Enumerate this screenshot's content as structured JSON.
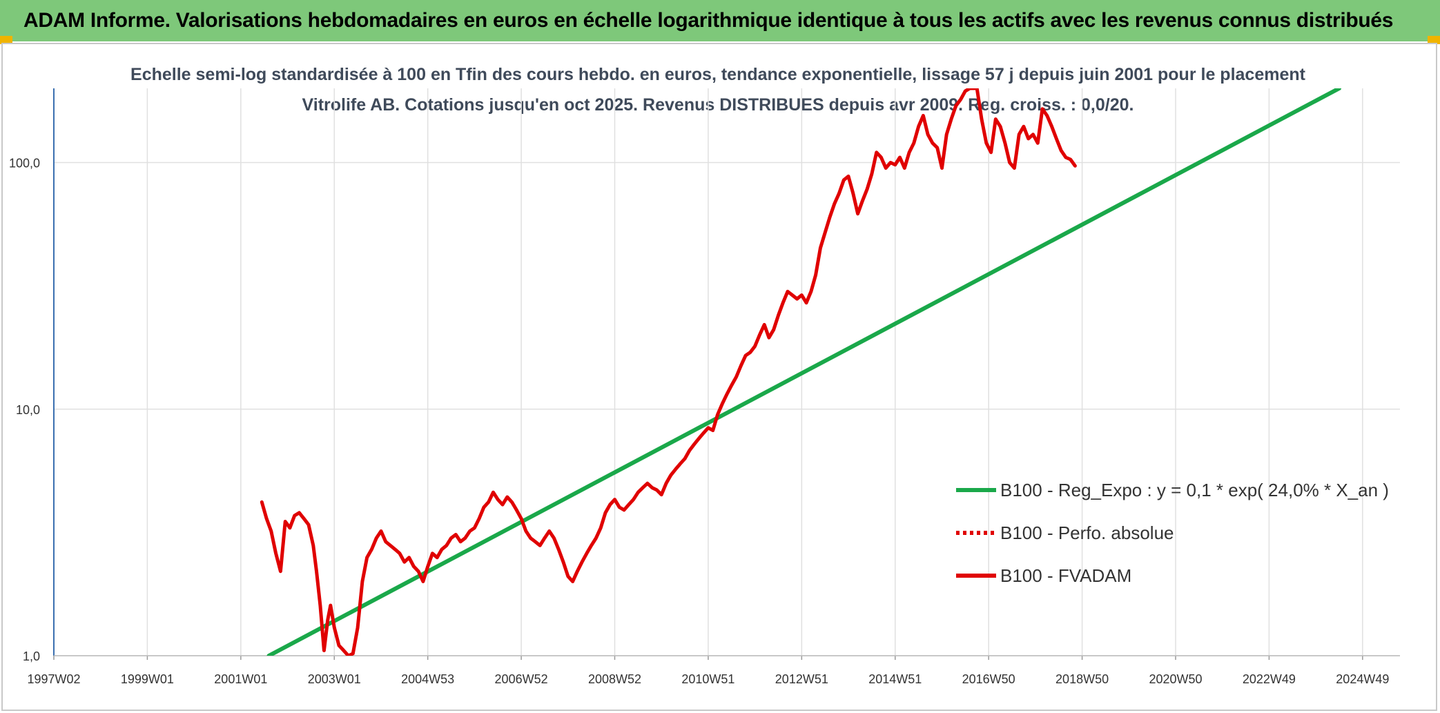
{
  "header": {
    "title": "ADAM Informe. Valorisations hebdomadaires en euros en échelle logarithmique identique à tous les actifs avec les revenus connus distribués"
  },
  "chart_data": {
    "type": "line",
    "title": "Echelle semi-log standardisée à 100 en Tfin des cours hebdo. en euros, tendance exponentielle, lissage 57 j depuis juin 2001 pour le placement Vitrolife AB. Cotations jusqu'en oct 2025. Revenus DISTRIBUES depuis avr 2009. Reg. croiss. : 0,0/20.",
    "y_scale": "log",
    "ylim": [
      1,
      200
    ],
    "xlim": [
      1997.0,
      2025.8
    ],
    "y_ticks": [
      {
        "value": 1,
        "label": "1,0"
      },
      {
        "value": 10,
        "label": "10,0"
      },
      {
        "value": 100,
        "label": "100,0"
      }
    ],
    "x_ticks": [
      {
        "value": 1997.0,
        "label": "1997W02"
      },
      {
        "value": 1999.0,
        "label": "1999W01"
      },
      {
        "value": 2001.0,
        "label": "2001W01"
      },
      {
        "value": 2003.0,
        "label": "2003W01"
      },
      {
        "value": 2005.0,
        "label": "2004W53"
      },
      {
        "value": 2007.0,
        "label": "2006W52"
      },
      {
        "value": 2009.0,
        "label": "2008W52"
      },
      {
        "value": 2011.0,
        "label": "2010W51"
      },
      {
        "value": 2013.0,
        "label": "2012W51"
      },
      {
        "value": 2015.0,
        "label": "2014W51"
      },
      {
        "value": 2017.0,
        "label": "2016W50"
      },
      {
        "value": 2019.0,
        "label": "2018W50"
      },
      {
        "value": 2021.0,
        "label": "2020W50"
      },
      {
        "value": 2023.0,
        "label": "2022W49"
      },
      {
        "value": 2025.0,
        "label": "2024W49"
      }
    ],
    "grid": {
      "vertical": true,
      "horizontal": true
    },
    "legend_position": "right",
    "series": [
      {
        "name": "B100 - Reg_Expo : y = 0,1 * exp( 24,0% *  X_an )",
        "color": "#1aa84a",
        "style": "solid",
        "points": [
          [
            2001.6,
            1.0
          ],
          [
            2024.5,
            200
          ]
        ]
      },
      {
        "name": "B100 - Perfo. absolue",
        "color": "#e00000",
        "style": "dotted",
        "points": []
      },
      {
        "name": "B100 - FVADAM",
        "color": "#e00000",
        "style": "solid",
        "points": [
          [
            2001.45,
            4.2
          ],
          [
            2001.55,
            3.6
          ],
          [
            2001.65,
            3.2
          ],
          [
            2001.75,
            2.6
          ],
          [
            2001.85,
            2.2
          ],
          [
            2001.95,
            3.5
          ],
          [
            2002.05,
            3.3
          ],
          [
            2002.15,
            3.7
          ],
          [
            2002.25,
            3.8
          ],
          [
            2002.35,
            3.6
          ],
          [
            2002.45,
            3.4
          ],
          [
            2002.55,
            2.8
          ],
          [
            2002.62,
            2.2
          ],
          [
            2002.7,
            1.6
          ],
          [
            2002.78,
            1.05
          ],
          [
            2002.86,
            1.4
          ],
          [
            2002.92,
            1.6
          ],
          [
            2003.0,
            1.3
          ],
          [
            2003.1,
            1.1
          ],
          [
            2003.2,
            1.05
          ],
          [
            2003.3,
            1.0
          ],
          [
            2003.4,
            1.02
          ],
          [
            2003.5,
            1.3
          ],
          [
            2003.6,
            2.0
          ],
          [
            2003.7,
            2.5
          ],
          [
            2003.8,
            2.7
          ],
          [
            2003.9,
            3.0
          ],
          [
            2004.0,
            3.2
          ],
          [
            2004.1,
            2.9
          ],
          [
            2004.2,
            2.8
          ],
          [
            2004.3,
            2.7
          ],
          [
            2004.4,
            2.6
          ],
          [
            2004.5,
            2.4
          ],
          [
            2004.6,
            2.5
          ],
          [
            2004.7,
            2.3
          ],
          [
            2004.8,
            2.2
          ],
          [
            2004.9,
            2.0
          ],
          [
            2005.0,
            2.3
          ],
          [
            2005.1,
            2.6
          ],
          [
            2005.2,
            2.5
          ],
          [
            2005.3,
            2.7
          ],
          [
            2005.4,
            2.8
          ],
          [
            2005.5,
            3.0
          ],
          [
            2005.6,
            3.1
          ],
          [
            2005.7,
            2.9
          ],
          [
            2005.8,
            3.0
          ],
          [
            2005.9,
            3.2
          ],
          [
            2006.0,
            3.3
          ],
          [
            2006.1,
            3.6
          ],
          [
            2006.2,
            4.0
          ],
          [
            2006.3,
            4.2
          ],
          [
            2006.4,
            4.6
          ],
          [
            2006.5,
            4.3
          ],
          [
            2006.6,
            4.1
          ],
          [
            2006.7,
            4.4
          ],
          [
            2006.8,
            4.2
          ],
          [
            2006.9,
            3.9
          ],
          [
            2007.0,
            3.6
          ],
          [
            2007.1,
            3.2
          ],
          [
            2007.2,
            3.0
          ],
          [
            2007.3,
            2.9
          ],
          [
            2007.4,
            2.8
          ],
          [
            2007.5,
            3.0
          ],
          [
            2007.6,
            3.2
          ],
          [
            2007.7,
            3.0
          ],
          [
            2007.8,
            2.7
          ],
          [
            2007.9,
            2.4
          ],
          [
            2008.0,
            2.1
          ],
          [
            2008.1,
            2.0
          ],
          [
            2008.2,
            2.2
          ],
          [
            2008.3,
            2.4
          ],
          [
            2008.4,
            2.6
          ],
          [
            2008.5,
            2.8
          ],
          [
            2008.6,
            3.0
          ],
          [
            2008.7,
            3.3
          ],
          [
            2008.8,
            3.8
          ],
          [
            2008.9,
            4.1
          ],
          [
            2009.0,
            4.3
          ],
          [
            2009.1,
            4.0
          ],
          [
            2009.2,
            3.9
          ],
          [
            2009.3,
            4.1
          ],
          [
            2009.4,
            4.3
          ],
          [
            2009.5,
            4.6
          ],
          [
            2009.6,
            4.8
          ],
          [
            2009.7,
            5.0
          ],
          [
            2009.8,
            4.8
          ],
          [
            2009.9,
            4.7
          ],
          [
            2010.0,
            4.5
          ],
          [
            2010.1,
            5.0
          ],
          [
            2010.2,
            5.4
          ],
          [
            2010.3,
            5.7
          ],
          [
            2010.4,
            6.0
          ],
          [
            2010.5,
            6.3
          ],
          [
            2010.6,
            6.8
          ],
          [
            2010.7,
            7.2
          ],
          [
            2010.8,
            7.6
          ],
          [
            2010.9,
            8.0
          ],
          [
            2011.0,
            8.4
          ],
          [
            2011.1,
            8.2
          ],
          [
            2011.2,
            9.5
          ],
          [
            2011.3,
            10.5
          ],
          [
            2011.4,
            11.5
          ],
          [
            2011.5,
            12.5
          ],
          [
            2011.6,
            13.5
          ],
          [
            2011.7,
            15.0
          ],
          [
            2011.8,
            16.5
          ],
          [
            2011.9,
            17.0
          ],
          [
            2012.0,
            18.0
          ],
          [
            2012.1,
            20.0
          ],
          [
            2012.2,
            22.0
          ],
          [
            2012.3,
            19.5
          ],
          [
            2012.4,
            21.0
          ],
          [
            2012.5,
            24.0
          ],
          [
            2012.6,
            27.0
          ],
          [
            2012.7,
            30.0
          ],
          [
            2012.8,
            29.0
          ],
          [
            2012.9,
            28.0
          ],
          [
            2013.0,
            29.0
          ],
          [
            2013.1,
            27.0
          ],
          [
            2013.2,
            30.0
          ],
          [
            2013.3,
            35.0
          ],
          [
            2013.4,
            45.0
          ],
          [
            2013.5,
            52.0
          ],
          [
            2013.6,
            60.0
          ],
          [
            2013.7,
            68.0
          ],
          [
            2013.8,
            75.0
          ],
          [
            2013.9,
            85.0
          ],
          [
            2014.0,
            88.0
          ],
          [
            2014.1,
            75.0
          ],
          [
            2014.2,
            62.0
          ],
          [
            2014.3,
            70.0
          ],
          [
            2014.4,
            78.0
          ],
          [
            2014.5,
            90.0
          ],
          [
            2014.6,
            110.0
          ],
          [
            2014.7,
            105.0
          ],
          [
            2014.8,
            95.0
          ],
          [
            2014.9,
            100.0
          ],
          [
            2015.0,
            98.0
          ],
          [
            2015.1,
            105.0
          ],
          [
            2015.2,
            95.0
          ],
          [
            2015.3,
            110.0
          ],
          [
            2015.4,
            120.0
          ],
          [
            2015.5,
            140.0
          ],
          [
            2015.6,
            155.0
          ],
          [
            2015.7,
            130.0
          ],
          [
            2015.8,
            120.0
          ],
          [
            2015.9,
            115.0
          ],
          [
            2016.0,
            95.0
          ],
          [
            2016.1,
            130.0
          ],
          [
            2016.2,
            150.0
          ],
          [
            2016.3,
            170.0
          ],
          [
            2016.4,
            180.0
          ],
          [
            2016.5,
            195.0
          ],
          [
            2016.6,
            200.0
          ],
          [
            2016.7,
            200.0
          ],
          [
            2016.75,
            200.0
          ],
          [
            2016.85,
            150.0
          ],
          [
            2016.95,
            120.0
          ],
          [
            2017.05,
            110.0
          ],
          [
            2017.15,
            150.0
          ],
          [
            2017.25,
            140.0
          ],
          [
            2017.35,
            120.0
          ],
          [
            2017.45,
            100.0
          ],
          [
            2017.55,
            95.0
          ],
          [
            2017.65,
            130.0
          ],
          [
            2017.75,
            140.0
          ],
          [
            2017.85,
            125.0
          ],
          [
            2017.95,
            130.0
          ],
          [
            2018.05,
            120.0
          ],
          [
            2018.15,
            165.0
          ],
          [
            2018.25,
            155.0
          ],
          [
            2018.35,
            140.0
          ],
          [
            2018.45,
            125.0
          ],
          [
            2018.55,
            112.0
          ],
          [
            2018.65,
            105.0
          ],
          [
            2018.75,
            103.0
          ],
          [
            2018.85,
            97.0
          ]
        ]
      }
    ]
  }
}
